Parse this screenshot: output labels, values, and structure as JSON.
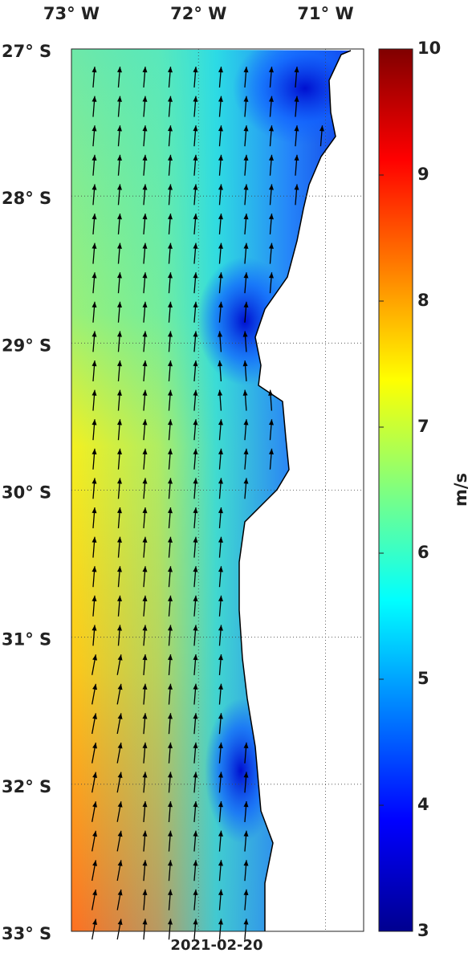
{
  "map": {
    "date": "2021-02-20",
    "lonlim": [
      -73,
      -70.7
    ],
    "latlim": [
      -33,
      -27
    ],
    "lon_ticks": [
      {
        "value": -73,
        "label": "73° W"
      },
      {
        "value": -72,
        "label": "72° W"
      },
      {
        "value": -71,
        "label": "71° W"
      }
    ],
    "lat_ticks": [
      {
        "value": -27,
        "label": "27° S"
      },
      {
        "value": -28,
        "label": "28° S"
      },
      {
        "value": -29,
        "label": "29° S"
      },
      {
        "value": -30,
        "label": "30° S"
      },
      {
        "value": -31,
        "label": "31° S"
      },
      {
        "value": -32,
        "label": "32° S"
      },
      {
        "value": -33,
        "label": "33° S"
      }
    ]
  },
  "colorbar": {
    "range": [
      3,
      10
    ],
    "ticks": [
      3,
      4,
      5,
      6,
      7,
      8,
      9,
      10
    ],
    "label": "m/s"
  }
}
